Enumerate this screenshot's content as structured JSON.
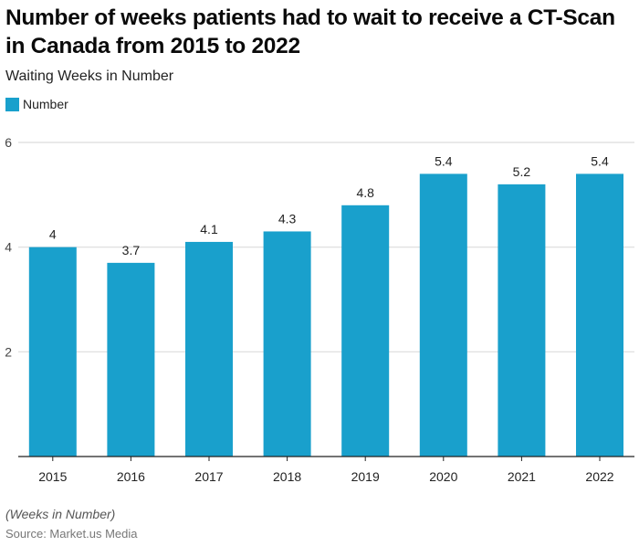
{
  "chart_data": {
    "type": "bar",
    "title": "Number of weeks patients had to wait to receive a CT-Scan in Canada from 2015 to 2022",
    "subtitle": "Waiting Weeks in Number",
    "xlabel": "",
    "ylabel": "",
    "categories": [
      "2015",
      "2016",
      "2017",
      "2018",
      "2019",
      "2020",
      "2021",
      "2022"
    ],
    "series": [
      {
        "name": "Number",
        "color": "#19a0cc",
        "values": [
          4,
          3.7,
          4.1,
          4.3,
          4.8,
          5.4,
          5.2,
          5.4
        ],
        "labels": [
          "4",
          "3.7",
          "4.1",
          "4.3",
          "4.8",
          "5.4",
          "5.2",
          "5.4"
        ]
      }
    ],
    "ylim": [
      0,
      6
    ],
    "yticks": [
      2,
      4,
      6
    ],
    "ytick_labels": [
      "2",
      "4",
      "6"
    ],
    "grid": true,
    "legend": {
      "placement": "top-left",
      "entries": [
        "Number"
      ]
    },
    "note": "(Weeks in Number)",
    "source": "Source: Market.us Media"
  }
}
